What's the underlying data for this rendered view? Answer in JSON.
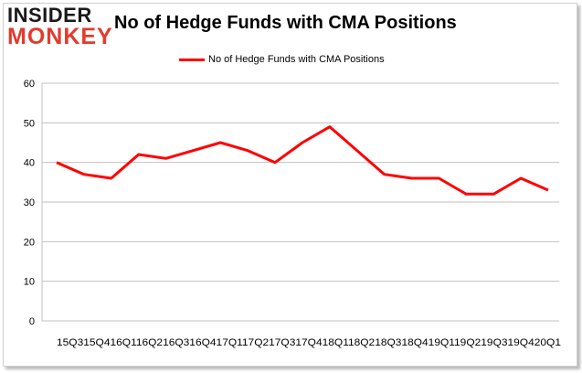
{
  "brand": {
    "logo_top": "INSIDER",
    "logo_bottom": "MONKEY"
  },
  "chart_data": {
    "type": "line",
    "title": "No of Hedge Funds with CMA Positions",
    "xlabel": "",
    "ylabel": "",
    "ylim": [
      0,
      60
    ],
    "yticks": [
      0,
      10,
      20,
      30,
      40,
      50,
      60
    ],
    "grid": true,
    "legend_position": "top-center",
    "categories": [
      "2015Q3",
      "2015Q4",
      "2016Q1",
      "2016Q2",
      "2016Q3",
      "2016Q4",
      "2017Q1",
      "2017Q2",
      "2017Q3",
      "2017Q4",
      "2018Q1",
      "2018Q2",
      "2018Q3",
      "2018Q4",
      "2019Q1",
      "2019Q2",
      "2019Q3",
      "2019Q4",
      "2020Q1"
    ],
    "tick_text": "15Q315Q416Q116Q216Q316Q417Q117Q217Q317Q418Q118Q218Q318Q419Q119Q219Q319Q420Q1",
    "series": [
      {
        "name": "No of Hedge Funds with CMA Positions",
        "color": "#ff0000",
        "values": [
          40,
          37,
          36,
          42,
          41,
          43,
          45,
          43,
          40,
          45,
          49,
          43,
          37,
          36,
          36,
          32,
          32,
          36,
          33
        ]
      }
    ]
  }
}
